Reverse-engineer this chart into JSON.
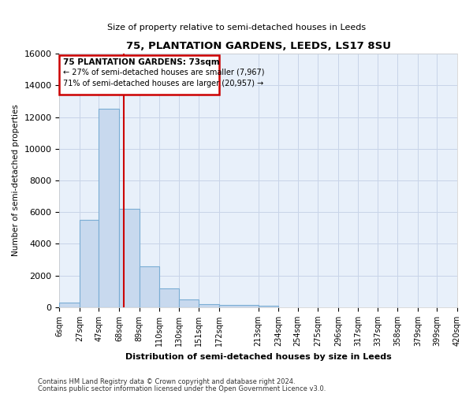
{
  "title": "75, PLANTATION GARDENS, LEEDS, LS17 8SU",
  "subtitle": "Size of property relative to semi-detached houses in Leeds",
  "xlabel": "Distribution of semi-detached houses by size in Leeds",
  "ylabel": "Number of semi-detached properties",
  "footer_line1": "Contains HM Land Registry data © Crown copyright and database right 2024.",
  "footer_line2": "Contains public sector information licensed under the Open Government Licence v3.0.",
  "property_label": "75 PLANTATION GARDENS: 73sqm",
  "smaller_label": "← 27% of semi-detached houses are smaller (7,967)",
  "larger_label": "71% of semi-detached houses are larger (20,957) →",
  "property_size": 73,
  "bin_edges": [
    6,
    27,
    47,
    68,
    89,
    110,
    130,
    151,
    172,
    213,
    234,
    254,
    275,
    296,
    317,
    337,
    358,
    379,
    399,
    420
  ],
  "bar_heights": [
    300,
    5500,
    12500,
    6200,
    2600,
    1200,
    500,
    200,
    150,
    100,
    0,
    0,
    0,
    0,
    0,
    0,
    0,
    0,
    0
  ],
  "bar_color": "#c8d9ee",
  "bar_edge_color": "#7aadd4",
  "vline_color": "#cc0000",
  "ylim": [
    0,
    16000
  ],
  "yticks": [
    0,
    2000,
    4000,
    6000,
    8000,
    10000,
    12000,
    14000,
    16000
  ],
  "grid_color": "#c8d4e8",
  "annotation_box_color": "#cc0000",
  "bg_color": "#e8f0fa"
}
